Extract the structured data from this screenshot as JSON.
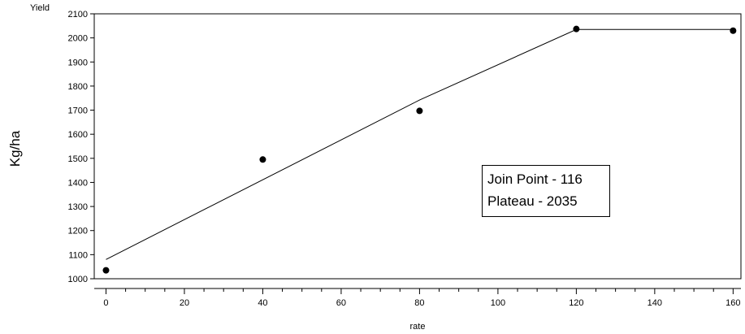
{
  "chart_data": {
    "type": "scatter",
    "ylabel_small": "Yield",
    "ylabel": "Kg/ha",
    "xlabel": "rate",
    "xlim": [
      -3,
      162
    ],
    "ylim": [
      1000,
      2100
    ],
    "x_ticks": [
      0,
      20,
      40,
      60,
      80,
      100,
      120,
      140,
      160
    ],
    "y_ticks": [
      1000,
      1100,
      1200,
      1300,
      1400,
      1500,
      1600,
      1700,
      1800,
      1900,
      2000,
      2100
    ],
    "points": [
      {
        "x": 0,
        "y": 1035
      },
      {
        "x": 40,
        "y": 1495
      },
      {
        "x": 80,
        "y": 1697
      },
      {
        "x": 120,
        "y": 2037
      },
      {
        "x": 160,
        "y": 2030
      }
    ],
    "fit_line": [
      {
        "x": 0,
        "y": 1080
      },
      {
        "x": 80,
        "y": 1742
      },
      {
        "x": 120,
        "y": 2035
      },
      {
        "x": 160,
        "y": 2035
      }
    ],
    "annotations": [
      "Join Point - 116",
      "Plateau - 2035"
    ],
    "grid": false,
    "legend": "none"
  }
}
